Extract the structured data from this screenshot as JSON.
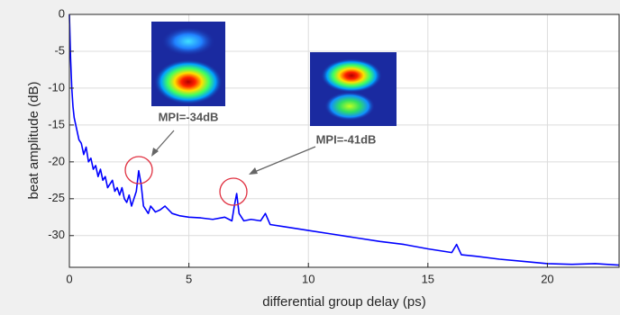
{
  "chart_data": {
    "type": "line",
    "xlabel": "differential group delay (ps)",
    "ylabel": "beat amplitude (dB)",
    "annotations": [
      "MPI=-34dB",
      "MPI=-41dB"
    ],
    "xlim": [
      0,
      23
    ],
    "ylim": [
      -34.3,
      0
    ],
    "xticks": [
      0,
      5,
      10,
      15,
      20
    ],
    "yticks": [
      0,
      -5,
      -10,
      -15,
      -20,
      -25,
      -30
    ],
    "grid": true,
    "series": [
      {
        "color": "#0000ff",
        "x": [
          0,
          0.05,
          0.1,
          0.15,
          0.2,
          0.3,
          0.4,
          0.5,
          0.6,
          0.7,
          0.8,
          0.9,
          1.0,
          1.1,
          1.2,
          1.3,
          1.4,
          1.5,
          1.6,
          1.7,
          1.8,
          1.9,
          2.0,
          2.1,
          2.2,
          2.3,
          2.4,
          2.5,
          2.6,
          2.7,
          2.8,
          2.9,
          3.0,
          3.1,
          3.2,
          3.3,
          3.4,
          3.6,
          3.8,
          4.0,
          4.3,
          4.6,
          5.0,
          5.5,
          6.0,
          6.5,
          6.8,
          6.9,
          7.0,
          7.1,
          7.3,
          7.6,
          8.0,
          8.2,
          8.4,
          9.0,
          10.0,
          11.0,
          12.0,
          13.0,
          14.0,
          15.0,
          16.0,
          16.2,
          16.4,
          17.0,
          18.0,
          19.0,
          20.0,
          21.0,
          22.0,
          23.0
        ],
        "values": [
          0,
          -6,
          -10,
          -12.5,
          -14,
          -15.5,
          -17,
          -17.5,
          -19,
          -18,
          -20,
          -19.5,
          -21,
          -20.5,
          -22,
          -21,
          -22.5,
          -22,
          -23.5,
          -23,
          -22.5,
          -24,
          -23.5,
          -24.5,
          -23.5,
          -25,
          -25.5,
          -24.5,
          -26,
          -25,
          -24,
          -21.2,
          -23,
          -26,
          -26.5,
          -27,
          -26,
          -26.8,
          -26.5,
          -26,
          -27,
          -27.3,
          -27.5,
          -27.6,
          -27.8,
          -27.5,
          -28,
          -26,
          -24.3,
          -27,
          -28,
          -27.8,
          -28,
          -27,
          -28.5,
          -28.8,
          -29.3,
          -29.8,
          -30.3,
          -30.8,
          -31.2,
          -31.8,
          -32.3,
          -31.2,
          -32.6,
          -32.8,
          -33.2,
          -33.5,
          -33.8,
          -33.9,
          -33.8,
          -34
        ]
      }
    ]
  }
}
